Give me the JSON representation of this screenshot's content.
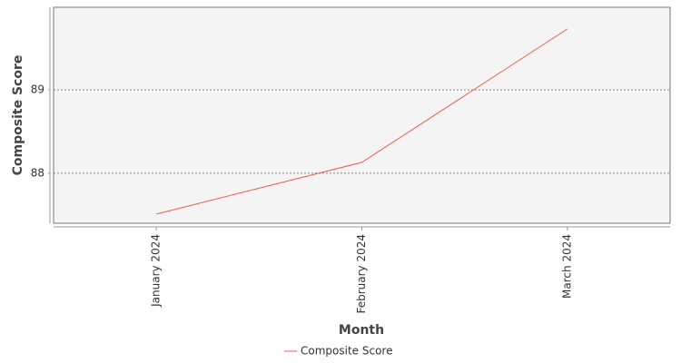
{
  "chart_data": {
    "type": "line",
    "categories": [
      "January 2024",
      "February 2024",
      "March 2024"
    ],
    "series": [
      {
        "name": "Composite Score",
        "color": "#f05a50",
        "values": [
          87.51,
          88.13,
          89.73
        ]
      }
    ],
    "x_label": "Month",
    "y_label": "Composite Score",
    "ylim": [
      87.4,
      89.99
    ],
    "yticks": [
      88,
      89
    ],
    "grid": true,
    "legend": "bottom"
  }
}
